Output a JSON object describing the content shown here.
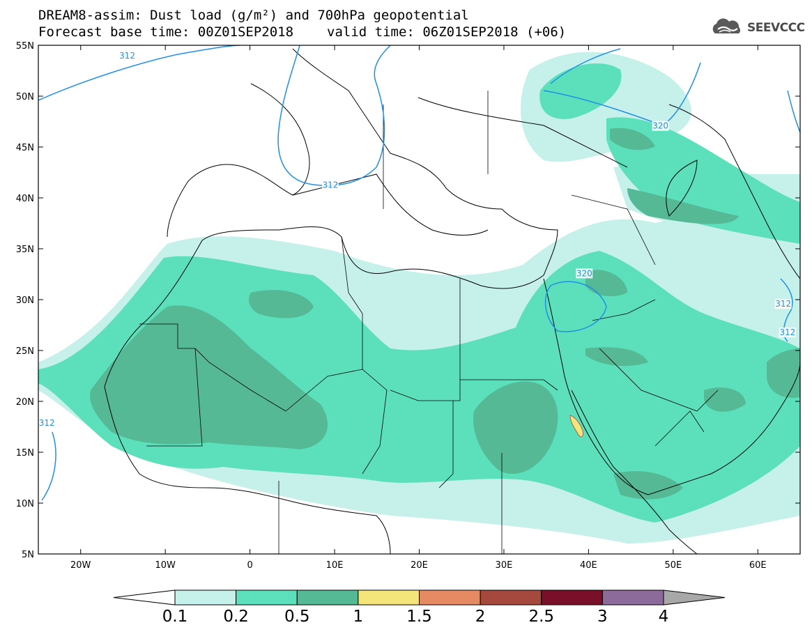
{
  "header": {
    "title": "DREAM8-assim: Dust load (g/m²) and 700hPa geopotential",
    "base_time": "Forecast base time: 00Z01SEP2018",
    "valid_time": "valid time: 06Z01SEP2018 (+06)"
  },
  "logo": {
    "text": "SEEVCCC",
    "icon": "cloud-icon"
  },
  "map": {
    "lon_range": [
      -25,
      65
    ],
    "lat_range": [
      5,
      55
    ],
    "lon_ticks": [
      {
        "value": -20,
        "label": "20W"
      },
      {
        "value": -10,
        "label": "10W"
      },
      {
        "value": 0,
        "label": "0"
      },
      {
        "value": 10,
        "label": "10E"
      },
      {
        "value": 20,
        "label": "20E"
      },
      {
        "value": 30,
        "label": "30E"
      },
      {
        "value": 40,
        "label": "40E"
      },
      {
        "value": 50,
        "label": "50E"
      },
      {
        "value": 60,
        "label": "60E"
      }
    ],
    "lat_ticks": [
      {
        "value": 55,
        "label": "55N"
      },
      {
        "value": 50,
        "label": "50N"
      },
      {
        "value": 45,
        "label": "45N"
      },
      {
        "value": 40,
        "label": "40N"
      },
      {
        "value": 35,
        "label": "35N"
      },
      {
        "value": 30,
        "label": "30N"
      },
      {
        "value": 25,
        "label": "25N"
      },
      {
        "value": 20,
        "label": "20N"
      },
      {
        "value": 15,
        "label": "15N"
      },
      {
        "value": 10,
        "label": "10N"
      },
      {
        "value": 5,
        "label": "5N"
      }
    ],
    "contour_labels": [
      {
        "text": "312",
        "lon": -14.5,
        "lat": 53.7
      },
      {
        "text": "312",
        "lon": 9.5,
        "lat": 41.0
      },
      {
        "text": "320",
        "lon": 48.5,
        "lat": 46.8
      },
      {
        "text": "320",
        "lon": 39.5,
        "lat": 32.3
      },
      {
        "text": "312",
        "lon": 63.0,
        "lat": 29.3
      },
      {
        "text": "312",
        "lon": 63.5,
        "lat": 26.5
      },
      {
        "text": "312",
        "lon": -24.0,
        "lat": 17.6
      }
    ],
    "contour_color": "#1e8fe8"
  },
  "colorbar": {
    "colors": [
      "#ffffff",
      "#c6f0ea",
      "#5ce0bb",
      "#55b995",
      "#f3e57a",
      "#e68a64",
      "#a5483e",
      "#7a0f2a",
      "#8c6a9a",
      "#a8a8a8"
    ],
    "labels": [
      "0.1",
      "0.2",
      "0.5",
      "1",
      "1.5",
      "2",
      "2.5",
      "3",
      "4"
    ]
  }
}
